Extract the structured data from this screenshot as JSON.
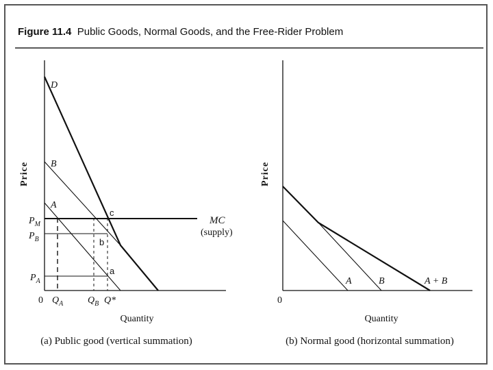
{
  "figure": {
    "number": "Figure 11.4",
    "title": "Public Goods, Normal Goods, and the Free-Rider Problem"
  },
  "panel_a": {
    "caption": "(a) Public good (vertical summation)",
    "y_axis_label": "Price",
    "x_axis_label": "Quantity",
    "origin": "0",
    "curve_labels": {
      "d": "D",
      "b": "B",
      "a": "A",
      "mc": "MC",
      "supply": "(supply)"
    },
    "price_labels": {
      "pm": "P",
      "pm_sub": "M",
      "pb": "P",
      "pb_sub": "B",
      "pa": "P",
      "pa_sub": "A"
    },
    "quantity_labels": {
      "qa": "Q",
      "qa_sub": "A",
      "qb": "Q",
      "qb_sub": "B",
      "qstar": "Q*"
    },
    "point_labels": {
      "c": "c",
      "b": "b",
      "a": "a"
    }
  },
  "panel_b": {
    "caption": "(b) Normal good (horizontal summation)",
    "y_axis_label": "Price",
    "x_axis_label": "Quantity",
    "origin": "0",
    "curve_labels": {
      "a": "A",
      "b": "B",
      "ab": "A + B"
    }
  }
}
